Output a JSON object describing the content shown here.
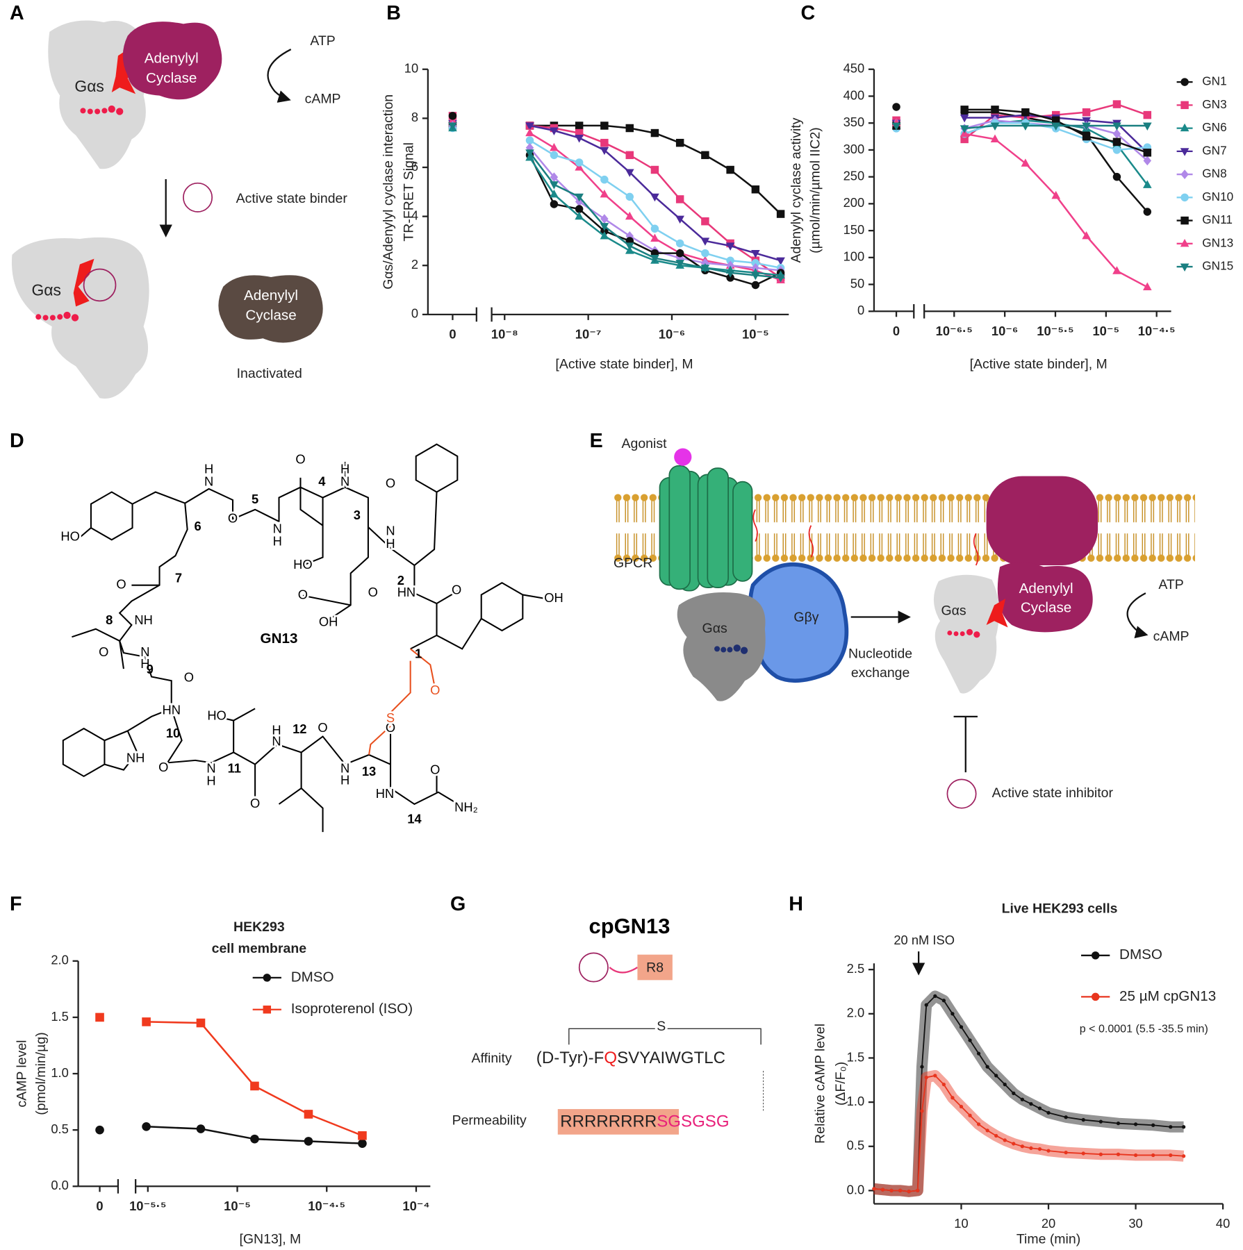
{
  "panel_labels": [
    "A",
    "B",
    "C",
    "D",
    "E",
    "F",
    "G",
    "H"
  ],
  "panel_a": {
    "top_gas": "Gαs",
    "top_cyclase": [
      "Adenylyl",
      "Cyclase"
    ],
    "atp": "ATP",
    "camp": "cAMP",
    "binder": "Active state binder",
    "bottom_gas": "Gαs",
    "bottom_cyclase": [
      "Adenylyl",
      "Cyclase"
    ],
    "status": "Inactivated"
  },
  "panel_d": {
    "name": "GN13",
    "residues": [
      "1",
      "2",
      "3",
      "4",
      "5",
      "6",
      "7",
      "8",
      "9",
      "10",
      "11",
      "12",
      "13",
      "14"
    ],
    "atoms": [
      "HO",
      "H",
      "N",
      "O",
      "N",
      "H",
      "O",
      "H",
      "N",
      "O",
      "HO",
      "N",
      "H",
      "O",
      "OH",
      "O",
      "HN",
      "O",
      "OH",
      "O",
      "NH",
      "O",
      "N",
      "H",
      "O",
      "HN",
      "HO",
      "NH",
      "O",
      "N",
      "H",
      "O",
      "H",
      "N",
      "O",
      "N",
      "H",
      "O",
      "HN",
      "O",
      "NH₂",
      "S",
      "O"
    ]
  },
  "panel_e": {
    "agonist": "Agonist",
    "gpcr": "GPCR",
    "gas_left": "Gαs",
    "gbg": "Gβγ",
    "exchange": [
      "Nucleotide",
      "exchange"
    ],
    "gas_right": "Gαs",
    "cyclase": [
      "Adenylyl",
      "Cyclase"
    ],
    "atp": "ATP",
    "camp": "cAMP",
    "inhibitor": "Active state inhibitor"
  },
  "panel_g": {
    "name": "cpGN13",
    "tag": "R8",
    "bridge": "S",
    "affinity_label": "Affinity",
    "affinity_seq": [
      "(D-Tyr)-F",
      "Q",
      "SVYAIWGTLC"
    ],
    "permeability_label": "Permeability",
    "permeability_seq": [
      "RRRRRRRR",
      "SGSGSG"
    ]
  },
  "chart_data": [
    {
      "type": "line",
      "xscale": "log",
      "xlabel": "[Active state binder], M",
      "ylabel": [
        "Gαs/Adenylyl cyclase interaction",
        "TR-FRET Signal"
      ],
      "x": [
        0,
        2e-08,
        3.9e-08,
        7.8e-08,
        1.56e-07,
        3.13e-07,
        6.25e-07,
        1.25e-06,
        2.5e-06,
        5e-06,
        1e-05,
        2e-05
      ],
      "xlim": [
        7e-09,
        2.5e-05
      ],
      "xticks": [
        0,
        {
          "value": 1e-08,
          "label": "10⁻⁸"
        },
        {
          "value": 1e-07,
          "label": "10⁻⁷"
        },
        {
          "value": 1e-06,
          "label": "10⁻⁶"
        },
        {
          "value": 1e-05,
          "label": "10⁻⁵"
        }
      ],
      "ylim": [
        0,
        10
      ],
      "yticks": [
        0,
        2,
        4,
        6,
        8,
        10
      ],
      "series": [
        {
          "color": "#111111",
          "marker": "square",
          "values": [
            7.7,
            7.7,
            7.7,
            7.7,
            7.7,
            7.6,
            7.4,
            7.0,
            6.5,
            5.9,
            5.1,
            4.1
          ]
        },
        {
          "color": "#e8387a",
          "marker": "square",
          "values": [
            8.1,
            7.7,
            7.6,
            7.4,
            7.0,
            6.5,
            5.9,
            4.7,
            3.8,
            2.9,
            2.2,
            1.5
          ]
        },
        {
          "color": "#4b2a9a",
          "marker": "triangle-down",
          "values": [
            7.8,
            7.7,
            7.5,
            7.2,
            6.7,
            5.8,
            4.8,
            3.9,
            3.0,
            2.8,
            2.5,
            2.2
          ]
        },
        {
          "color": "#f0408a",
          "marker": "triangle",
          "values": [
            7.9,
            7.4,
            6.8,
            6.0,
            4.9,
            4.0,
            3.1,
            2.5,
            2.2,
            2.0,
            1.8,
            1.4
          ]
        },
        {
          "color": "#7fd0f0",
          "marker": "circle",
          "values": [
            7.6,
            7.1,
            6.5,
            6.2,
            5.5,
            4.8,
            3.5,
            2.9,
            2.5,
            2.2,
            2.1,
            1.9
          ]
        },
        {
          "color": "#b088e8",
          "marker": "diamond",
          "values": [
            7.7,
            6.8,
            5.6,
            4.6,
            3.9,
            3.2,
            2.6,
            2.3,
            2.1,
            2.0,
            1.9,
            1.8
          ]
        },
        {
          "color": "#111111",
          "marker": "circle",
          "values": [
            8.1,
            6.5,
            4.5,
            4.3,
            3.4,
            3.0,
            2.5,
            2.5,
            1.8,
            1.5,
            1.2,
            1.7
          ]
        },
        {
          "color": "#1a8a8a",
          "marker": "triangle",
          "values": [
            7.6,
            6.4,
            4.9,
            4.0,
            3.2,
            2.6,
            2.2,
            2.0,
            1.9,
            1.8,
            1.7,
            1.6
          ]
        },
        {
          "color": "#1a7f80",
          "marker": "triangle-down",
          "values": [
            7.7,
            6.6,
            5.3,
            4.8,
            3.6,
            2.8,
            2.3,
            2.1,
            1.9,
            1.7,
            1.6,
            1.5
          ]
        }
      ]
    },
    {
      "type": "line",
      "xscale": "log",
      "legend": "right",
      "xlabel": "[Active state binder], M",
      "ylabel": [
        "Adenylyl cyclase activity",
        "(µmol/min/µmol IIC2)"
      ],
      "x": [
        0,
        4e-07,
        8e-07,
        1.6e-06,
        3.2e-06,
        6.4e-06,
        1.28e-05,
        2.56e-05
      ],
      "xlim": [
        1.6e-07,
        4.4e-05
      ],
      "xticks": [
        0,
        {
          "value": 3.1622776601683797e-07,
          "label": "10⁻⁶·⁵"
        },
        {
          "value": 1e-06,
          "label": "10⁻⁶"
        },
        {
          "value": 3.1622776601683796e-06,
          "label": "10⁻⁵·⁵"
        },
        {
          "value": 1e-05,
          "label": "10⁻⁵"
        },
        {
          "value": 3.1622776601683795e-05,
          "label": "10⁻⁴·⁵"
        }
      ],
      "ylim": [
        0,
        450
      ],
      "yticks": [
        0,
        50,
        100,
        150,
        200,
        250,
        300,
        350,
        400,
        450
      ],
      "series": [
        {
          "name": "GN1",
          "color": "#111111",
          "marker": "circle",
          "values": [
            380,
            370,
            370,
            360,
            350,
            330,
            250,
            185
          ]
        },
        {
          "name": "GN3",
          "color": "#e8387a",
          "marker": "square",
          "values": [
            355,
            320,
            365,
            360,
            365,
            370,
            385,
            365
          ]
        },
        {
          "name": "GN6",
          "color": "#1a8a8a",
          "marker": "triangle",
          "values": [
            345,
            330,
            350,
            355,
            350,
            340,
            310,
            235
          ]
        },
        {
          "name": "GN7",
          "color": "#4b2a9a",
          "marker": "triangle-down",
          "values": [
            350,
            360,
            360,
            365,
            360,
            355,
            350,
            295
          ]
        },
        {
          "name": "GN8",
          "color": "#b088e8",
          "marker": "diamond",
          "values": [
            350,
            340,
            355,
            350,
            345,
            345,
            330,
            280
          ]
        },
        {
          "name": "GN10",
          "color": "#7fd0f0",
          "marker": "circle",
          "values": [
            340,
            330,
            350,
            350,
            340,
            320,
            300,
            305
          ]
        },
        {
          "name": "GN11",
          "color": "#111111",
          "marker": "square",
          "values": [
            345,
            375,
            375,
            370,
            355,
            325,
            315,
            295
          ]
        },
        {
          "name": "GN13",
          "color": "#f0408a",
          "marker": "triangle",
          "values": [
            350,
            330,
            320,
            275,
            215,
            140,
            75,
            45
          ]
        },
        {
          "name": "GN15",
          "color": "#1a7f80",
          "marker": "triangle-down",
          "values": [
            345,
            340,
            345,
            345,
            345,
            345,
            345,
            345
          ]
        }
      ]
    },
    {
      "type": "line",
      "xscale": "log",
      "legend": "upper right",
      "title": [
        "HEK293",
        "cell membrane"
      ],
      "xlabel": "[GN13], M",
      "ylabel": [
        "cAMP level",
        "(pmol/min/µg)"
      ],
      "x": [
        0,
        3.1e-06,
        6.25e-06,
        1.25e-05,
        2.5e-05,
        5e-05
      ],
      "xlim": [
        2.7e-06,
        0.00012
      ],
      "xticks": [
        0,
        {
          "value": 3.1622776601683796e-06,
          "label": "10⁻⁵·⁵"
        },
        {
          "value": 1e-05,
          "label": "10⁻⁵"
        },
        {
          "value": 3.1622776601683795e-05,
          "label": "10⁻⁴·⁵"
        },
        {
          "value": 0.0001,
          "label": "10⁻⁴"
        }
      ],
      "ylim": [
        0,
        2
      ],
      "yticks": [
        {
          "value": 0,
          "label": "0.0"
        },
        0.5,
        {
          "value": 1,
          "label": "1.0"
        },
        1.5,
        {
          "value": 2,
          "label": "2.0"
        }
      ],
      "series": [
        {
          "name": "DMSO",
          "color": "#111111",
          "marker": "circle",
          "values": [
            0.5,
            0.53,
            0.51,
            0.42,
            0.4,
            0.38
          ]
        },
        {
          "name": "Isoproterenol (ISO)",
          "color": "#f03a1e",
          "marker": "square",
          "values": [
            1.5,
            1.46,
            1.45,
            0.89,
            0.64,
            0.45
          ]
        }
      ]
    },
    {
      "type": "line",
      "xscale": "linear",
      "legend": "upper right",
      "title": "Live HEK293 cells",
      "annotations": [
        "20 nM ISO",
        "p < 0.0001 (5.5 -35.5 min)"
      ],
      "xlabel": "Time (min)",
      "ylabel": [
        "Relative cAMP level",
        "(ΔF/F₀)"
      ],
      "x": [
        0,
        1,
        2,
        3,
        4,
        5,
        5.5,
        6,
        7,
        8,
        9,
        10,
        11,
        12,
        13,
        14,
        15,
        16,
        17,
        18,
        19,
        20,
        22,
        24,
        26,
        28,
        30,
        32,
        34,
        35.5
      ],
      "xlim": [
        0,
        40
      ],
      "xticks": [
        10,
        20,
        30,
        40
      ],
      "ylim": [
        -0.15,
        2.57
      ],
      "yticks": [
        {
          "value": 0,
          "label": "0.0"
        },
        0.5,
        {
          "value": 1,
          "label": "1.0"
        },
        1.5,
        {
          "value": 2,
          "label": "2.0"
        },
        2.5
      ],
      "series": [
        {
          "name": "DMSO",
          "color": "#111111",
          "marker": "circle",
          "values": [
            0.02,
            0.01,
            0,
            0,
            -0.01,
            0,
            1.4,
            2.1,
            2.2,
            2.15,
            2.0,
            1.85,
            1.7,
            1.55,
            1.4,
            1.3,
            1.2,
            1.1,
            1.03,
            0.98,
            0.93,
            0.88,
            0.83,
            0.8,
            0.78,
            0.76,
            0.75,
            0.74,
            0.72,
            0.72
          ]
        },
        {
          "name": "25 µM cpGN13",
          "color": "#e8351e",
          "marker": "circle",
          "values": [
            0.02,
            0.01,
            0,
            0,
            -0.01,
            0,
            0.9,
            1.28,
            1.3,
            1.2,
            1.05,
            0.95,
            0.85,
            0.75,
            0.68,
            0.62,
            0.57,
            0.53,
            0.5,
            0.48,
            0.47,
            0.45,
            0.43,
            0.42,
            0.41,
            0.41,
            0.4,
            0.4,
            0.4,
            0.39
          ]
        }
      ]
    }
  ]
}
